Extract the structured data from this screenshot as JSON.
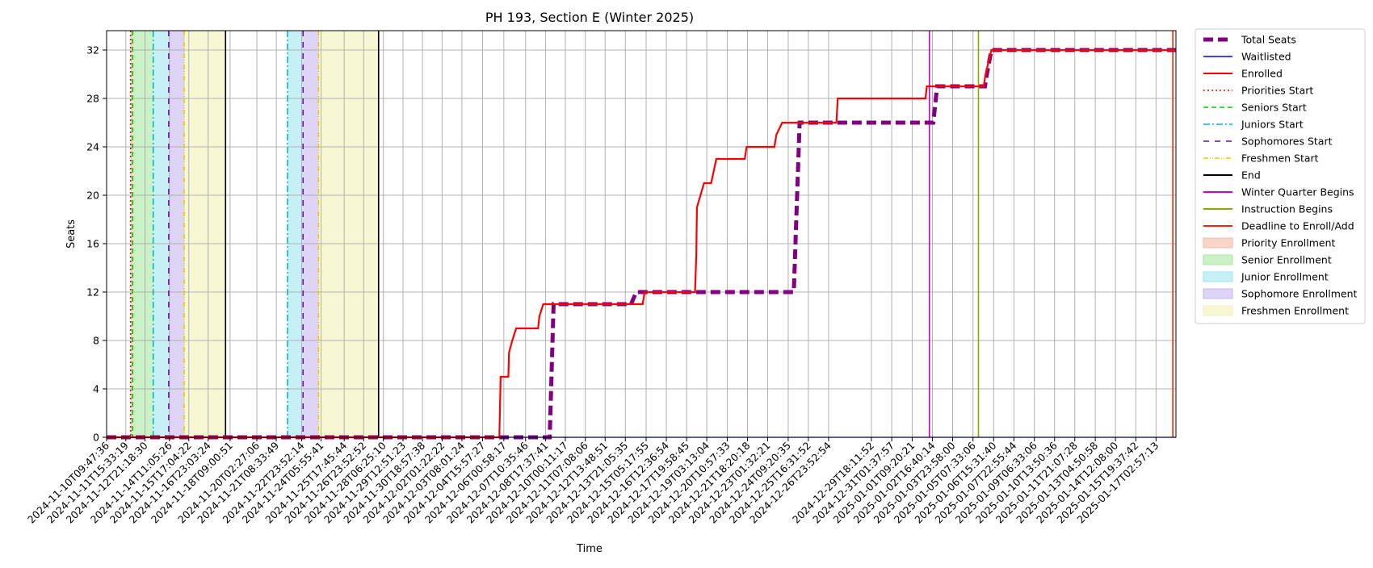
{
  "chart_data": {
    "type": "line",
    "title": "PH 193, Section E (Winter 2025)",
    "xlabel": "Time",
    "ylabel": "Seats",
    "ylim": [
      0,
      33.6
    ],
    "yticks": [
      0,
      4,
      8,
      12,
      16,
      20,
      24,
      28,
      32
    ],
    "xlim": [
      "2024-11-10T09:47:36",
      "2025-01-18T09:47:36"
    ],
    "xtick_labels": [
      "2024-11-10T09:47:36",
      "2024-11-11T15:33:19",
      "2024-11-12T21:18:30",
      "2024-11-14T11:05:26",
      "2024-11-15T17:04:22",
      "2024-11-16T23:03:24",
      "2024-11-18T09:00:51",
      "2024-11-20T02:27:06",
      "2024-11-21T08:33:49",
      "2024-11-22T23:52:14",
      "2024-11-24T05:55:41",
      "2024-11-25T17:45:44",
      "2024-11-26T23:52:52",
      "2024-11-28T06:25:10",
      "2024-11-29T12:51:23",
      "2024-11-30T18:57:38",
      "2024-12-02T01:22:22",
      "2024-12-03T08:01:24",
      "2024-12-04T15:57:27",
      "2024-12-06T00:58:17",
      "2024-12-07T10:35:46",
      "2024-12-08T17:37:41",
      "2024-12-10T00:11:17",
      "2024-12-11T07:08:06",
      "2024-12-12T13:48:51",
      "2024-12-13T21:05:35",
      "2024-12-15T05:17:55",
      "2024-12-16T12:36:54",
      "2024-12-17T19:58:45",
      "2024-12-19T03:13:04",
      "2024-12-20T10:57:33",
      "2024-12-21T18:20:18",
      "2024-12-23T01:32:21",
      "2024-12-24T09:20:35",
      "2024-12-25T16:31:52",
      "2024-12-26T23:52:54",
      "2024-12-29T18:11:52",
      "2024-12-31T01:37:57",
      "2025-01-01T09:20:21",
      "2025-01-02T16:40:14",
      "2025-01-03T23:58:00",
      "2025-01-05T07:33:06",
      "2025-01-06T15:31:40",
      "2025-01-07T22:55:44",
      "2025-01-09T06:33:06",
      "2025-01-10T13:50:36",
      "2025-01-11T21:07:28",
      "2025-01-13T04:50:58",
      "2025-01-14T12:08:00",
      "2025-01-15T19:37:42",
      "2025-01-17T02:57:13"
    ],
    "series": [
      {
        "name": "Total Seats",
        "color": "#800080",
        "style": "dashed-thick",
        "points": [
          [
            "2024-11-10T09:47:36",
            0
          ],
          [
            "2024-12-09T00:00:00",
            0
          ],
          [
            "2024-12-09T06:00:00",
            11
          ],
          [
            "2024-12-14T06:00:00",
            11
          ],
          [
            "2024-12-14T14:00:00",
            12
          ],
          [
            "2024-12-24T18:00:00",
            12
          ],
          [
            "2024-12-25T03:00:00",
            26
          ],
          [
            "2025-01-02T18:00:00",
            26
          ],
          [
            "2025-01-03T00:00:00",
            29
          ],
          [
            "2025-01-06T02:00:00",
            29
          ],
          [
            "2025-01-06T05:00:00",
            30
          ],
          [
            "2025-01-06T12:00:00",
            32
          ],
          [
            "2025-01-18T09:47:36",
            32
          ]
        ]
      },
      {
        "name": "Waitlisted",
        "color": "#0000ff",
        "style": "solid-thin",
        "points": [
          [
            "2024-11-10T09:47:36",
            0
          ],
          [
            "2025-01-18T09:47:36",
            0
          ]
        ]
      },
      {
        "name": "Enrolled",
        "color": "#ff0000",
        "style": "solid",
        "points": [
          [
            "2024-11-10T09:47:36",
            0
          ],
          [
            "2024-12-05T18:00:00",
            0
          ],
          [
            "2024-12-05T20:00:00",
            5
          ],
          [
            "2024-12-06T08:00:00",
            5
          ],
          [
            "2024-12-06T09:00:00",
            7
          ],
          [
            "2024-12-06T14:00:00",
            8
          ],
          [
            "2024-12-06T20:00:00",
            9
          ],
          [
            "2024-12-08T06:00:00",
            9
          ],
          [
            "2024-12-08T08:00:00",
            10
          ],
          [
            "2024-12-08T14:00:00",
            11
          ],
          [
            "2024-12-15T00:00:00",
            11
          ],
          [
            "2024-12-15T03:00:00",
            12
          ],
          [
            "2024-12-18T09:00:00",
            12
          ],
          [
            "2024-12-18T11:00:00",
            15
          ],
          [
            "2024-12-18T12:00:00",
            19
          ],
          [
            "2024-12-18T23:00:00",
            21
          ],
          [
            "2024-12-19T10:00:00",
            21
          ],
          [
            "2024-12-19T14:00:00",
            22
          ],
          [
            "2024-12-19T18:00:00",
            23
          ],
          [
            "2024-12-21T14:00:00",
            23
          ],
          [
            "2024-12-21T17:00:00",
            24
          ],
          [
            "2024-12-23T12:00:00",
            24
          ],
          [
            "2024-12-23T15:00:00",
            25
          ],
          [
            "2024-12-24T00:00:00",
            26
          ],
          [
            "2024-12-27T12:00:00",
            26
          ],
          [
            "2024-12-27T14:00:00",
            28
          ],
          [
            "2025-01-02T06:00:00",
            28
          ],
          [
            "2025-01-02T08:00:00",
            29
          ],
          [
            "2025-01-06T00:00:00",
            29
          ],
          [
            "2025-01-06T03:00:00",
            30
          ],
          [
            "2025-01-06T12:00:00",
            32
          ],
          [
            "2025-01-18T09:47:36",
            32
          ]
        ]
      }
    ],
    "event_lines": [
      {
        "name": "Priorities Start",
        "color": "#ff0000",
        "style": "dotted",
        "dates": [
          "2024-11-11T23:00:00"
        ]
      },
      {
        "name": "Seniors Start",
        "color": "#00cc00",
        "style": "dashed",
        "dates": [
          "2024-11-12T02:00:00"
        ]
      },
      {
        "name": "Juniors Start",
        "color": "#00bfbf",
        "style": "dashdot",
        "dates": [
          "2024-11-13T10:00:00",
          "2024-11-22T02:00:00"
        ]
      },
      {
        "name": "Sophomores Start",
        "color": "#6a0dad",
        "style": "loosedash",
        "dates": [
          "2024-11-14T10:00:00",
          "2024-11-23T02:00:00"
        ]
      },
      {
        "name": "Freshmen Start",
        "color": "#e6cc00",
        "style": "dashdotdot",
        "dates": [
          "2024-11-15T10:00:00",
          "2024-11-24T02:00:00"
        ]
      },
      {
        "name": "End",
        "color": "#000000",
        "style": "solid",
        "dates": [
          "2024-11-18T02:00:00",
          "2024-11-27T23:00:00"
        ]
      },
      {
        "name": "Winter Quarter Begins",
        "color": "#cc00cc",
        "style": "solid",
        "dates": [
          "2025-01-02T12:00:00"
        ]
      },
      {
        "name": "Instruction Begins",
        "color": "#88aa00",
        "style": "solid",
        "dates": [
          "2025-01-05T16:00:00"
        ]
      },
      {
        "name": "Deadline to Enroll/Add",
        "color": "#ff2200",
        "style": "solid",
        "dates": [
          "2025-01-18T05:00:00"
        ]
      }
    ],
    "periods": [
      {
        "name": "Priority Enrollment",
        "color": "#f4b8a8",
        "ranges": [
          [
            "2024-11-11T23:00:00",
            "2024-11-12T02:00:00"
          ]
        ]
      },
      {
        "name": "Senior Enrollment",
        "color": "#a8e8a0",
        "ranges": [
          [
            "2024-11-12T02:00:00",
            "2024-11-13T10:00:00"
          ]
        ]
      },
      {
        "name": "Junior Enrollment",
        "color": "#a0e6ee",
        "ranges": [
          [
            "2024-11-13T10:00:00",
            "2024-11-14T10:00:00"
          ],
          [
            "2024-11-22T02:00:00",
            "2024-11-23T02:00:00"
          ]
        ]
      },
      {
        "name": "Sophomore Enrollment",
        "color": "#c8b8f0",
        "ranges": [
          [
            "2024-11-14T10:00:00",
            "2024-11-15T10:00:00"
          ],
          [
            "2024-11-23T02:00:00",
            "2024-11-24T02:00:00"
          ]
        ]
      },
      {
        "name": "Freshmen Enrollment",
        "color": "#f2f2b8",
        "ranges": [
          [
            "2024-11-15T10:00:00",
            "2024-11-18T02:00:00"
          ],
          [
            "2024-11-24T02:00:00",
            "2024-11-27T23:00:00"
          ]
        ]
      }
    ],
    "legend_position": "right-outside-top",
    "grid": true
  }
}
